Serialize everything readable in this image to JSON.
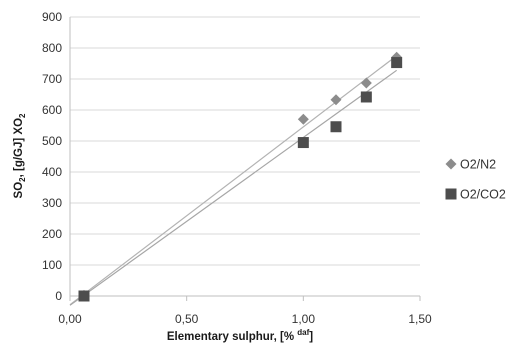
{
  "chart_data": {
    "type": "scatter",
    "xlabel": "Elementary sulphur, [% daf]",
    "ylabel": "SO2, [g/GJ] XO2",
    "xlim": [
      0,
      1.5
    ],
    "ylim": [
      0,
      900
    ],
    "x_ticks": [
      "0,00",
      "0,50",
      "1,00",
      "1,50"
    ],
    "y_ticks": [
      "0",
      "100",
      "200",
      "300",
      "400",
      "500",
      "600",
      "700",
      "800",
      "900"
    ],
    "grid": "horizontal",
    "legend_position": "right",
    "series": [
      {
        "name": "O2/N2",
        "marker": "diamond",
        "color": "#8c8c8c",
        "x": [
          0.06,
          1.0,
          1.14,
          1.27,
          1.4
        ],
        "y": [
          2,
          570,
          633,
          687,
          770
        ],
        "trendline": {
          "x": [
            0.0,
            1.4
          ],
          "y": [
            -28,
            775
          ],
          "color": "#b3b3b3"
        }
      },
      {
        "name": "O2/CO2",
        "marker": "square",
        "color": "#4d4d4d",
        "x": [
          0.06,
          1.0,
          1.14,
          1.27,
          1.4
        ],
        "y": [
          0,
          495,
          546,
          642,
          753
        ],
        "trendline": {
          "x": [
            0.0,
            1.4
          ],
          "y": [
            -30,
            728
          ],
          "color": "#a6a6a6"
        }
      }
    ]
  }
}
